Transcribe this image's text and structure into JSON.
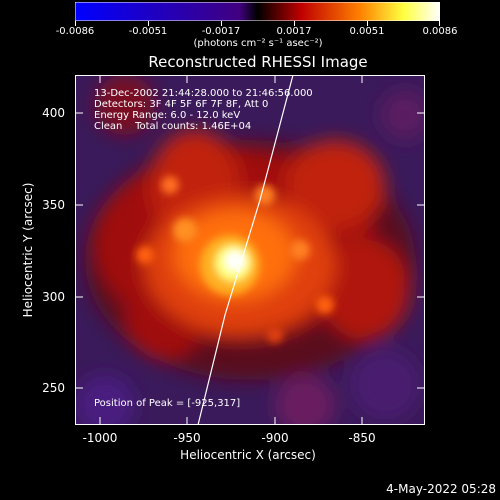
{
  "colorbar": {
    "labels": [
      "-0.0086",
      "-0.0051",
      "-0.0017",
      "0.0017",
      "0.0051",
      "0.0086"
    ],
    "unit": "(photons cm⁻² s⁻¹ asec⁻²)"
  },
  "title": "Reconstructed RHESSI Image",
  "annotations": {
    "time": "13-Dec-2002 21:44:28.000 to 21:46:56.000",
    "detectors": "Detectors: 3F 4F 5F 6F 7F 8F, Att 0",
    "energy": "Energy Range: 6.0 - 12.0 keV",
    "clean": "Clean    Total counts: 1.46E+04",
    "peak": "Position of Peak = [-925,317]"
  },
  "axes": {
    "xlabel": "Heliocentric X (arcsec)",
    "ylabel": "Heliocentric Y (arcsec)",
    "xticks": [
      "-1000",
      "-950",
      "-900",
      "-850"
    ],
    "yticks": [
      "400",
      "350",
      "300",
      "250"
    ]
  },
  "footer": {
    "date": "4-May-2022 05:28"
  }
}
